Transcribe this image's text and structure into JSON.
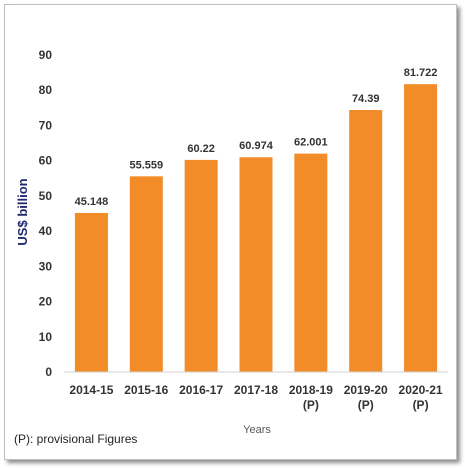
{
  "chart_data": {
    "type": "bar",
    "categories": [
      "2014-15",
      "2015-16",
      "2016-17",
      "2017-18",
      "2018-19\n(P)",
      "2019-20\n(P)",
      "2020-21\n(P)"
    ],
    "values": [
      45.148,
      55.559,
      60.22,
      60.974,
      62.001,
      74.39,
      81.722
    ],
    "value_labels": [
      "45.148",
      "55.559",
      "60.22",
      "60.974",
      "62.001",
      "74.39",
      "81.722"
    ],
    "xlabel": "Years",
    "ylabel": "US$ billion",
    "ylim": [
      0,
      90
    ],
    "yticks": [
      0,
      10,
      20,
      30,
      40,
      50,
      60,
      70,
      80,
      90
    ],
    "grid": false,
    "bar_color": "#f28c28"
  },
  "footnote": "(P): provisional Figures"
}
